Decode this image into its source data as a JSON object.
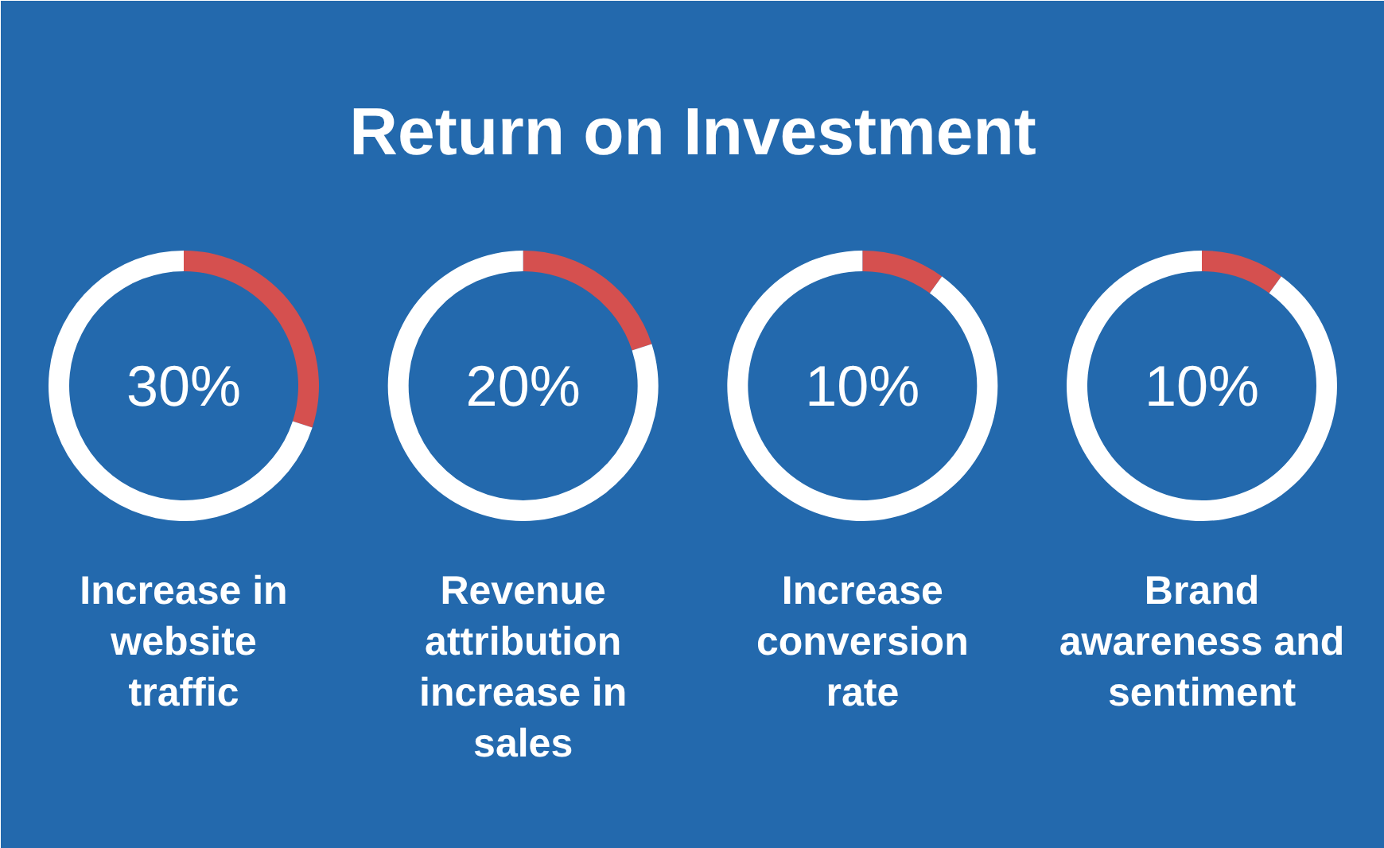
{
  "chart_data": [
    {
      "type": "donut",
      "title": "Return on Investment",
      "subtitle": "Increase in website traffic",
      "categories": [
        null,
        null
      ],
      "values": [
        30,
        70
      ],
      "colors": [
        "#d5504f",
        "#ffffff"
      ],
      "annotations": [
        "30%"
      ]
    },
    {
      "type": "donut",
      "subtitle": "Revenue attribution increase in sales",
      "categories": [
        null,
        null
      ],
      "values": [
        20,
        80
      ],
      "colors": [
        "#d5504f",
        "#ffffff"
      ],
      "annotations": [
        "20%"
      ]
    },
    {
      "type": "donut",
      "subtitle": "Increase conversion rate",
      "categories": [
        null,
        null
      ],
      "values": [
        10,
        90
      ],
      "colors": [
        "#d5504f",
        "#ffffff"
      ],
      "annotations": [
        "10%"
      ]
    },
    {
      "type": "donut",
      "subtitle": "Brand awareness and sentiment",
      "categories": [
        null,
        null
      ],
      "values": [
        10,
        90
      ],
      "colors": [
        "#d5504f",
        "#ffffff"
      ],
      "annotations": [
        "10%"
      ]
    }
  ]
}
